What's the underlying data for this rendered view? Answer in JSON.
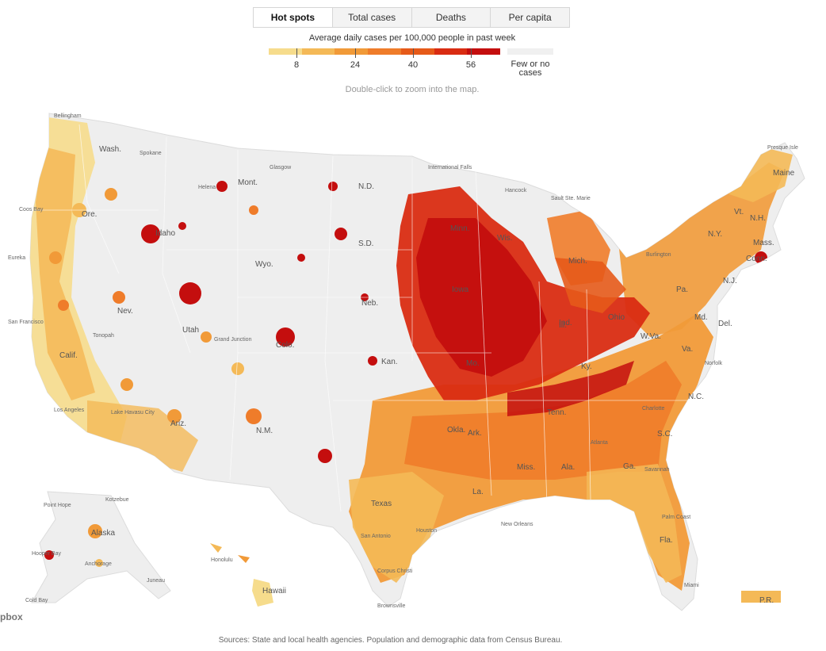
{
  "tabs": [
    {
      "label": "Hot spots",
      "active": true
    },
    {
      "label": "Total cases",
      "active": false
    },
    {
      "label": "Deaths",
      "active": false
    },
    {
      "label": "Per capita",
      "active": false
    }
  ],
  "legend": {
    "title": "Average daily cases per 100,000 people in past week",
    "colors": [
      "#f6dc8c",
      "#f4b957",
      "#f19a38",
      "#ef7c2a",
      "#e65a19",
      "#d92c12",
      "#c40e0e"
    ],
    "ticks": [
      "8",
      "24",
      "40",
      "56"
    ],
    "no_data_label_1": "Few or no",
    "no_data_label_2": "cases",
    "no_data_color": "#f0f0f0"
  },
  "zoom_hint": "Double-click to zoom into the map.",
  "map": {
    "land_color": "#eeeeee",
    "states": [
      {
        "label": "Wash."
      },
      {
        "label": "Ore."
      },
      {
        "label": "Calif."
      },
      {
        "label": "Nev."
      },
      {
        "label": "Idaho"
      },
      {
        "label": "Mont."
      },
      {
        "label": "Wyo."
      },
      {
        "label": "Utah"
      },
      {
        "label": "Ariz."
      },
      {
        "label": "Colo."
      },
      {
        "label": "N.M."
      },
      {
        "label": "N.D."
      },
      {
        "label": "S.D."
      },
      {
        "label": "Neb."
      },
      {
        "label": "Kan."
      },
      {
        "label": "Okla."
      },
      {
        "label": "Texas"
      },
      {
        "label": "Minn."
      },
      {
        "label": "Iowa"
      },
      {
        "label": "Mo."
      },
      {
        "label": "Ark."
      },
      {
        "label": "La."
      },
      {
        "label": "Wis."
      },
      {
        "label": "Ill."
      },
      {
        "label": "Mich."
      },
      {
        "label": "Ind."
      },
      {
        "label": "Ohio"
      },
      {
        "label": "Ky."
      },
      {
        "label": "Tenn."
      },
      {
        "label": "Miss."
      },
      {
        "label": "Ala."
      },
      {
        "label": "Ga."
      },
      {
        "label": "Fla."
      },
      {
        "label": "S.C."
      },
      {
        "label": "N.C."
      },
      {
        "label": "Va."
      },
      {
        "label": "W.Va."
      },
      {
        "label": "Pa."
      },
      {
        "label": "N.Y."
      },
      {
        "label": "Md."
      },
      {
        "label": "Del."
      },
      {
        "label": "N.J."
      },
      {
        "label": "Conn."
      },
      {
        "label": "Mass."
      },
      {
        "label": "Vt."
      },
      {
        "label": "N.H."
      },
      {
        "label": "Maine"
      },
      {
        "label": "Alaska"
      },
      {
        "label": "Hawaii"
      },
      {
        "label": "P.R."
      }
    ],
    "cities": [
      {
        "label": "Bellingham"
      },
      {
        "label": "Spokane"
      },
      {
        "label": "Coos Bay"
      },
      {
        "label": "Eureka"
      },
      {
        "label": "San Francisco"
      },
      {
        "label": "Tonopah"
      },
      {
        "label": "Los Angeles"
      },
      {
        "label": "Lake Havasu City"
      },
      {
        "label": "Helena"
      },
      {
        "label": "Glasgow"
      },
      {
        "label": "International Falls"
      },
      {
        "label": "Hancock"
      },
      {
        "label": "Sault Ste. Marie"
      },
      {
        "label": "Presque Isle"
      },
      {
        "label": "Burlington"
      },
      {
        "label": "Grand Junction"
      },
      {
        "label": "Norfolk"
      },
      {
        "label": "Charlotte"
      },
      {
        "label": "Atlanta"
      },
      {
        "label": "Savannah"
      },
      {
        "label": "Houston"
      },
      {
        "label": "San Antonio"
      },
      {
        "label": "Corpus Christi"
      },
      {
        "label": "Brownsville"
      },
      {
        "label": "New Orleans"
      },
      {
        "label": "Palm Coast"
      },
      {
        "label": "Miami"
      },
      {
        "label": "Point Hope"
      },
      {
        "label": "Kotzebue"
      },
      {
        "label": "Hooper Bay"
      },
      {
        "label": "Anchorage"
      },
      {
        "label": "Juneau"
      },
      {
        "label": "Cold Bay"
      },
      {
        "label": "Honolulu"
      }
    ]
  },
  "mapbox_logo": "pbox",
  "sources": "Sources: State and local health agencies. Population and demographic data from Census Bureau."
}
